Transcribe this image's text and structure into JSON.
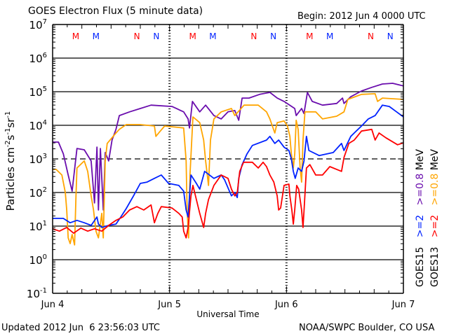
{
  "chart_data": {
    "type": "line",
    "title": "GOES Electron Flux (5 minute data)",
    "begin_label": "Begin: 2012 Jun 4 0000 UTC",
    "xlabel": "Universal Time",
    "ylabel": {
      "base": "Particles cm",
      "e1": "-2",
      "s": "s",
      "e2": "-1",
      "sr": "sr",
      "e3": "-1"
    },
    "x_units": "hours since 2012 Jun 4 0000 UTC",
    "xlim": [
      0,
      72
    ],
    "x_ticks": [
      {
        "hour": 0,
        "label": "Jun 4"
      },
      {
        "hour": 24,
        "label": "Jun 5"
      },
      {
        "hour": 48,
        "label": "Jun 6"
      },
      {
        "hour": 72,
        "label": "Jun 7"
      }
    ],
    "y_scale": "log",
    "ylim_log10": [
      -1,
      7
    ],
    "y_ticks": [
      {
        "exp": 7,
        "label": "7"
      },
      {
        "exp": 6,
        "label": "6"
      },
      {
        "exp": 5,
        "label": "5"
      },
      {
        "exp": 4,
        "label": "4"
      },
      {
        "exp": 3,
        "label": "3"
      },
      {
        "exp": 2,
        "label": "2"
      },
      {
        "exp": 1,
        "label": "1"
      },
      {
        "exp": 0,
        "label": "0"
      },
      {
        "exp": -1,
        "label": "-1"
      }
    ],
    "y_tick_base": "10",
    "threshold_dashed_log10": 3,
    "grid": true,
    "legend_position": "right",
    "legend": [
      {
        "sat": "GOES15",
        "items": [
          {
            "label": ">=2",
            "color": "#0022ff"
          },
          {
            "label": ">=0.8",
            "color": "#6a0dad"
          }
        ],
        "unit": "MeV"
      },
      {
        "sat": "GOES13",
        "items": [
          {
            "label": ">=2",
            "color": "#ff0000"
          },
          {
            "label": ">=0.8",
            "color": "#ffa500"
          }
        ],
        "unit": "MeV"
      }
    ],
    "markers": [
      {
        "hour": 4.75,
        "label": "M",
        "color": "#ff0000"
      },
      {
        "hour": 8.9,
        "label": "M",
        "color": "#0022ff"
      },
      {
        "hour": 17.3,
        "label": "N",
        "color": "#ff0000"
      },
      {
        "hour": 21.3,
        "label": "N",
        "color": "#0022ff"
      },
      {
        "hour": 28.75,
        "label": "M",
        "color": "#ff0000"
      },
      {
        "hour": 32.9,
        "label": "M",
        "color": "#0022ff"
      },
      {
        "hour": 41.3,
        "label": "N",
        "color": "#ff0000"
      },
      {
        "hour": 45.3,
        "label": "N",
        "color": "#0022ff"
      },
      {
        "hour": 52.75,
        "label": "M",
        "color": "#ff0000"
      },
      {
        "hour": 56.9,
        "label": "M",
        "color": "#0022ff"
      },
      {
        "hour": 65.3,
        "label": "N",
        "color": "#ff0000"
      },
      {
        "hour": 69.3,
        "label": "N",
        "color": "#0022ff"
      }
    ],
    "series": [
      {
        "name": "GOES15 >=0.8 MeV",
        "color": "#6a0dad",
        "points_hour_log10": [
          [
            0,
            3.5
          ],
          [
            1.2,
            3.5
          ],
          [
            2.2,
            3.15
          ],
          [
            3.2,
            2.52
          ],
          [
            4.0,
            2.04
          ],
          [
            5.0,
            3.31
          ],
          [
            6.5,
            3.27
          ],
          [
            7.9,
            2.94
          ],
          [
            8.6,
            1.69
          ],
          [
            9.1,
            3.35
          ],
          [
            9.4,
            1.48
          ],
          [
            9.8,
            3.31
          ],
          [
            10.4,
            1.48
          ],
          [
            10.8,
            3.19
          ],
          [
            11.5,
            2.94
          ],
          [
            12.2,
            3.56
          ],
          [
            13.0,
            3.88
          ],
          [
            13.7,
            4.29
          ],
          [
            15.8,
            4.4
          ],
          [
            18.0,
            4.5
          ],
          [
            20.2,
            4.6
          ],
          [
            24.5,
            4.56
          ],
          [
            26.9,
            4.4
          ],
          [
            27.8,
            4.19
          ],
          [
            28.1,
            3.92
          ],
          [
            28.7,
            4.71
          ],
          [
            30.2,
            4.4
          ],
          [
            31.4,
            4.6
          ],
          [
            33.1,
            4.29
          ],
          [
            34.6,
            4.19
          ],
          [
            36.0,
            4.4
          ],
          [
            37.4,
            4.44
          ],
          [
            38.2,
            4.15
          ],
          [
            38.9,
            4.81
          ],
          [
            40.3,
            4.81
          ],
          [
            42.5,
            4.92
          ],
          [
            44.6,
            4.98
          ],
          [
            46.1,
            4.81
          ],
          [
            47.5,
            4.71
          ],
          [
            49.7,
            4.5
          ],
          [
            50.0,
            4.29
          ],
          [
            51.1,
            4.5
          ],
          [
            51.6,
            4.35
          ],
          [
            52.3,
            4.98
          ],
          [
            53.3,
            4.71
          ],
          [
            55.4,
            4.6
          ],
          [
            58.3,
            4.65
          ],
          [
            59.5,
            4.81
          ],
          [
            59.8,
            4.65
          ],
          [
            61.2,
            4.85
          ],
          [
            63.4,
            5.02
          ],
          [
            65.5,
            5.13
          ],
          [
            67.7,
            5.23
          ],
          [
            69.8,
            5.25
          ],
          [
            72,
            5.17
          ]
        ]
      },
      {
        "name": "GOES13 >=0.8 MeV",
        "color": "#ffa500",
        "points_hour_log10": [
          [
            0,
            2.69
          ],
          [
            0.7,
            2.69
          ],
          [
            1.9,
            2.52
          ],
          [
            2.6,
            2.0
          ],
          [
            2.9,
            1.48
          ],
          [
            3.2,
            0.65
          ],
          [
            3.6,
            0.48
          ],
          [
            4.0,
            0.75
          ],
          [
            4.5,
            0.44
          ],
          [
            4.8,
            1.9
          ],
          [
            5.0,
            2.73
          ],
          [
            6.5,
            2.94
          ],
          [
            7.2,
            2.63
          ],
          [
            7.9,
            1.9
          ],
          [
            8.4,
            1.48
          ],
          [
            8.9,
            0.85
          ],
          [
            9.4,
            0.65
          ],
          [
            10.1,
            1.38
          ],
          [
            10.4,
            0.65
          ],
          [
            10.8,
            2.94
          ],
          [
            11.2,
            3.46
          ],
          [
            13.0,
            3.77
          ],
          [
            13.7,
            3.88
          ],
          [
            15.1,
            4.02
          ],
          [
            18.0,
            4.02
          ],
          [
            20.9,
            3.98
          ],
          [
            21.2,
            3.67
          ],
          [
            22.0,
            3.81
          ],
          [
            23.0,
            3.98
          ],
          [
            26.9,
            3.92
          ],
          [
            27.4,
            2.94
          ],
          [
            27.6,
            1.48
          ],
          [
            27.9,
            0.65
          ],
          [
            28.2,
            2.52
          ],
          [
            28.8,
            4.25
          ],
          [
            30.2,
            4.08
          ],
          [
            31.0,
            3.56
          ],
          [
            31.4,
            2.94
          ],
          [
            32.0,
            2.21
          ],
          [
            32.4,
            3.56
          ],
          [
            33.1,
            4.19
          ],
          [
            34.6,
            4.4
          ],
          [
            36.7,
            4.5
          ],
          [
            37.4,
            4.29
          ],
          [
            39.3,
            4.6
          ],
          [
            42.2,
            4.6
          ],
          [
            43.9,
            4.4
          ],
          [
            44.6,
            4.19
          ],
          [
            45.1,
            3.98
          ],
          [
            45.6,
            3.77
          ],
          [
            46.1,
            4.08
          ],
          [
            47.5,
            4.13
          ],
          [
            48.2,
            3.98
          ],
          [
            48.7,
            3.67
          ],
          [
            49.0,
            3.15
          ],
          [
            49.4,
            2.73
          ],
          [
            49.7,
            3.15
          ],
          [
            50.0,
            4.15
          ],
          [
            50.4,
            3.88
          ],
          [
            50.8,
            2.73
          ],
          [
            51.1,
            2.31
          ],
          [
            51.4,
            3.56
          ],
          [
            51.8,
            4.4
          ],
          [
            54.0,
            4.4
          ],
          [
            55.4,
            4.19
          ],
          [
            58.3,
            4.27
          ],
          [
            59.8,
            4.4
          ],
          [
            60.6,
            4.77
          ],
          [
            63.4,
            4.92
          ],
          [
            66.2,
            4.94
          ],
          [
            66.7,
            4.71
          ],
          [
            67.7,
            4.81
          ],
          [
            72,
            4.77
          ]
        ]
      },
      {
        "name": "GOES15 >=2 MeV",
        "color": "#0022ff",
        "points_hour_log10": [
          [
            0,
            1.23
          ],
          [
            2.2,
            1.23
          ],
          [
            3.6,
            1.1
          ],
          [
            5.0,
            1.17
          ],
          [
            6.5,
            1.1
          ],
          [
            7.9,
            1.02
          ],
          [
            9.1,
            1.27
          ],
          [
            9.4,
            1.06
          ],
          [
            10.1,
            0.96
          ],
          [
            11.5,
            1.02
          ],
          [
            13.0,
            1.06
          ],
          [
            14.0,
            1.27
          ],
          [
            15.1,
            1.52
          ],
          [
            16.6,
            1.9
          ],
          [
            18.0,
            2.27
          ],
          [
            19.4,
            2.31
          ],
          [
            20.9,
            2.42
          ],
          [
            22.3,
            2.52
          ],
          [
            23.8,
            2.27
          ],
          [
            25.9,
            2.21
          ],
          [
            26.9,
            2.04
          ],
          [
            27.4,
            1.48
          ],
          [
            27.8,
            1.27
          ],
          [
            28.4,
            2.52
          ],
          [
            29.5,
            2.27
          ],
          [
            30.2,
            2.1
          ],
          [
            31.2,
            2.63
          ],
          [
            33.1,
            2.42
          ],
          [
            34.6,
            2.52
          ],
          [
            35.3,
            2.38
          ],
          [
            36.7,
            1.9
          ],
          [
            37.4,
            2.0
          ],
          [
            37.9,
            1.85
          ],
          [
            38.2,
            2.42
          ],
          [
            38.9,
            2.83
          ],
          [
            39.9,
            3.15
          ],
          [
            41.0,
            3.4
          ],
          [
            43.9,
            3.56
          ],
          [
            44.6,
            3.67
          ],
          [
            45.6,
            3.46
          ],
          [
            46.4,
            3.56
          ],
          [
            47.5,
            3.35
          ],
          [
            48.5,
            3.25
          ],
          [
            49.0,
            3.0
          ],
          [
            49.4,
            2.63
          ],
          [
            49.8,
            2.42
          ],
          [
            50.4,
            2.73
          ],
          [
            51.1,
            2.63
          ],
          [
            51.6,
            2.94
          ],
          [
            52.1,
            3.67
          ],
          [
            52.6,
            3.25
          ],
          [
            54.7,
            3.1
          ],
          [
            57.6,
            3.19
          ],
          [
            59.3,
            3.46
          ],
          [
            59.8,
            3.25
          ],
          [
            61.2,
            3.67
          ],
          [
            61.9,
            3.77
          ],
          [
            63.4,
            3.98
          ],
          [
            64.8,
            4.19
          ],
          [
            66.2,
            4.29
          ],
          [
            67.7,
            4.6
          ],
          [
            69.1,
            4.56
          ],
          [
            70.6,
            4.4
          ],
          [
            72,
            4.25
          ]
        ]
      },
      {
        "name": "GOES13 >=2 MeV",
        "color": "#ff0000",
        "points_hour_log10": [
          [
            0,
            0.92
          ],
          [
            1.4,
            0.85
          ],
          [
            2.9,
            0.96
          ],
          [
            4.3,
            0.79
          ],
          [
            5.8,
            0.94
          ],
          [
            7.2,
            0.85
          ],
          [
            8.6,
            0.92
          ],
          [
            10.1,
            0.85
          ],
          [
            11.5,
            1.02
          ],
          [
            13.0,
            1.17
          ],
          [
            14.4,
            1.27
          ],
          [
            15.8,
            1.48
          ],
          [
            17.3,
            1.58
          ],
          [
            18.7,
            1.48
          ],
          [
            20.2,
            1.63
          ],
          [
            20.9,
            1.1
          ],
          [
            21.6,
            1.38
          ],
          [
            22.3,
            1.58
          ],
          [
            24.5,
            1.54
          ],
          [
            25.9,
            1.38
          ],
          [
            26.6,
            1.27
          ],
          [
            26.9,
            0.85
          ],
          [
            27.4,
            0.65
          ],
          [
            27.8,
            0.96
          ],
          [
            28.4,
            1.9
          ],
          [
            28.8,
            2.21
          ],
          [
            29.5,
            1.79
          ],
          [
            30.2,
            1.38
          ],
          [
            31.0,
            0.96
          ],
          [
            31.4,
            1.38
          ],
          [
            32.0,
            1.79
          ],
          [
            33.1,
            2.21
          ],
          [
            34.6,
            2.52
          ],
          [
            36.0,
            2.42
          ],
          [
            36.7,
            2.1
          ],
          [
            37.4,
            1.9
          ],
          [
            37.9,
            2.0
          ],
          [
            38.4,
            2.63
          ],
          [
            39.2,
            2.9
          ],
          [
            41.0,
            2.9
          ],
          [
            42.2,
            2.73
          ],
          [
            43.2,
            2.9
          ],
          [
            43.9,
            2.77
          ],
          [
            44.6,
            2.52
          ],
          [
            45.4,
            2.31
          ],
          [
            46.1,
            1.9
          ],
          [
            46.4,
            1.48
          ],
          [
            46.8,
            1.54
          ],
          [
            47.5,
            2.21
          ],
          [
            48.5,
            2.25
          ],
          [
            48.7,
            1.9
          ],
          [
            49.1,
            1.48
          ],
          [
            49.4,
            1.06
          ],
          [
            49.7,
            1.48
          ],
          [
            50.1,
            2.21
          ],
          [
            50.5,
            2.1
          ],
          [
            51.1,
            1.48
          ],
          [
            51.4,
            0.96
          ],
          [
            51.7,
            1.69
          ],
          [
            52.1,
            2.73
          ],
          [
            52.8,
            2.83
          ],
          [
            54.0,
            2.52
          ],
          [
            55.4,
            2.52
          ],
          [
            56.9,
            2.77
          ],
          [
            59.3,
            2.63
          ],
          [
            59.8,
            3.04
          ],
          [
            60.8,
            3.46
          ],
          [
            61.9,
            3.56
          ],
          [
            63.4,
            3.83
          ],
          [
            65.5,
            3.88
          ],
          [
            66.2,
            3.56
          ],
          [
            67.0,
            3.77
          ],
          [
            68.4,
            3.63
          ],
          [
            70.8,
            3.42
          ],
          [
            72,
            3.48
          ]
        ]
      }
    ]
  },
  "footer": {
    "updated": "Updated 2012 Jun  6 23:56:03 UTC",
    "credit": "NOAA/SWPC Boulder, CO USA"
  }
}
